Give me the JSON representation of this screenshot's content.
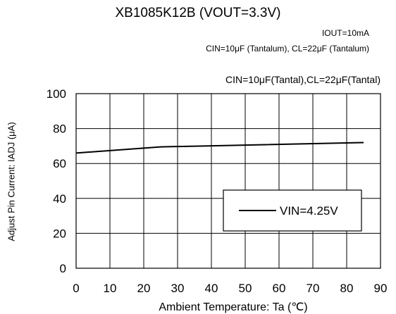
{
  "header": {
    "title": "XB1085K12B (VOUT=3.3V)",
    "condition_iout": "IOUT=10mA",
    "condition_caps": "CIN=10μF (Tantalum), CL=22μF (Tantalum)",
    "condition_caps_alt": "CIN=10μF(Tantal),CL=22μF(Tantal)"
  },
  "chart_data": {
    "type": "line",
    "xlabel": "Ambient Temperature: Ta (℃)",
    "ylabel": "Adjust Pin Current: IADJ (μA)",
    "xlim": [
      0,
      90
    ],
    "ylim": [
      0,
      100
    ],
    "xticks": [
      "0",
      "10",
      "20",
      "30",
      "40",
      "50",
      "60",
      "70",
      "80",
      "90"
    ],
    "yticks": [
      "0",
      "20",
      "40",
      "60",
      "80",
      "100"
    ],
    "grid": true,
    "legend_position": "center-right",
    "series": [
      {
        "name": "VIN=4.25V",
        "color": "#000000",
        "x": [
          0,
          25,
          85
        ],
        "y": [
          66,
          69.5,
          72
        ]
      }
    ]
  }
}
